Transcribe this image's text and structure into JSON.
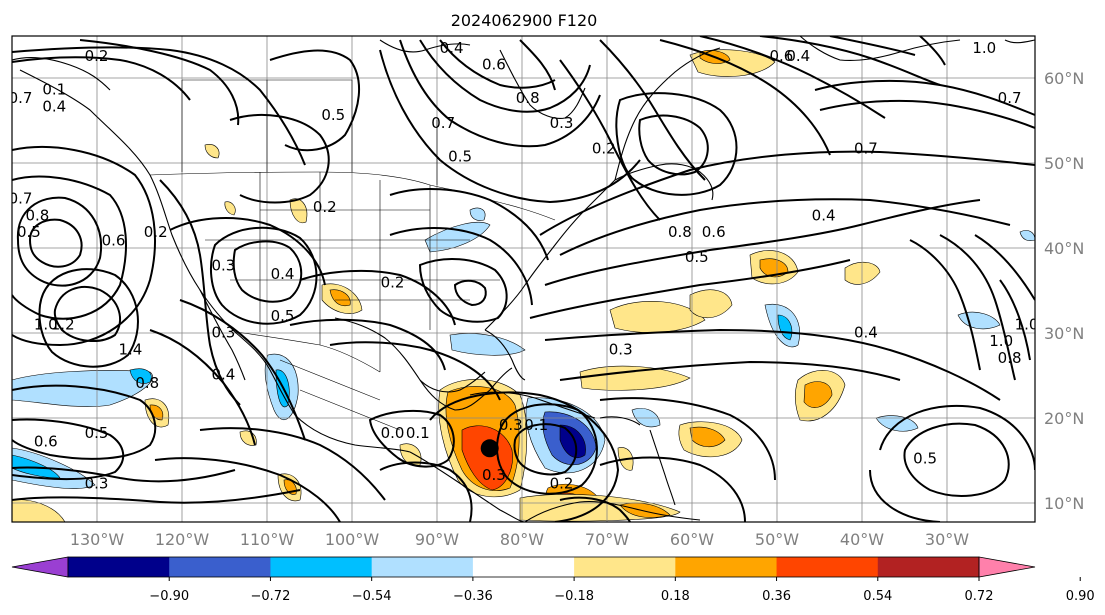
{
  "title": "2024062900 F120",
  "axes": {
    "lon_labels": [
      "130°W",
      "120°W",
      "110°W",
      "100°W",
      "90°W",
      "80°W",
      "70°W",
      "60°W",
      "50°W",
      "40°W",
      "30°W"
    ],
    "lat_labels": [
      "60°N",
      "50°N",
      "40°N",
      "30°N",
      "20°N",
      "10°N"
    ],
    "extent": {
      "lon_min": -137,
      "lon_max": -16,
      "lat_min": 7,
      "lat_max": 65
    }
  },
  "colorbar": {
    "ticks": [
      "−0.90",
      "−0.72",
      "−0.54",
      "−0.36",
      "−0.18",
      "0.18",
      "0.36",
      "0.54",
      "0.72",
      "0.90"
    ],
    "colors": [
      "#9a3fd2",
      "#00008b",
      "#3a5fcd",
      "#00bfff",
      "#b0e0ff",
      "#ffffff",
      "#ffe68a",
      "#ffa500",
      "#ff4500",
      "#b22222",
      "#ff80ab"
    ],
    "extend": "both"
  },
  "contour_labels": [
    {
      "text": "0.2",
      "lon": -127,
      "lat": 62
    },
    {
      "text": "0.4",
      "lon": -85,
      "lat": 63
    },
    {
      "text": "0.6",
      "lon": -80,
      "lat": 61
    },
    {
      "text": "0.8",
      "lon": -76,
      "lat": 57
    },
    {
      "text": "0.7",
      "lon": -86,
      "lat": 54
    },
    {
      "text": "0.5",
      "lon": -84,
      "lat": 50
    },
    {
      "text": "0.3",
      "lon": -72,
      "lat": 54
    },
    {
      "text": "0.2",
      "lon": -67,
      "lat": 51
    },
    {
      "text": "0.4",
      "lon": -44,
      "lat": 62
    },
    {
      "text": "0.6",
      "lon": -46,
      "lat": 62
    },
    {
      "text": "1.0",
      "lon": -22,
      "lat": 63
    },
    {
      "text": "0.7",
      "lon": -19,
      "lat": 57
    },
    {
      "text": "0.7",
      "lon": -36,
      "lat": 51
    },
    {
      "text": "0.8",
      "lon": -58,
      "lat": 41
    },
    {
      "text": "0.6",
      "lon": -54,
      "lat": 41
    },
    {
      "text": "0.5",
      "lon": -56,
      "lat": 38
    },
    {
      "text": "0.4",
      "lon": -41,
      "lat": 43
    },
    {
      "text": "0.4",
      "lon": -36,
      "lat": 29
    },
    {
      "text": "0.5",
      "lon": -29,
      "lat": 14
    },
    {
      "text": "1.0",
      "lon": -20,
      "lat": 28
    },
    {
      "text": "1.0",
      "lon": -17,
      "lat": 30
    },
    {
      "text": "0.8",
      "lon": -19,
      "lat": 26
    },
    {
      "text": "0.3",
      "lon": -65,
      "lat": 27
    },
    {
      "text": "0.2",
      "lon": -100,
      "lat": 44
    },
    {
      "text": "0.2",
      "lon": -120,
      "lat": 41
    },
    {
      "text": "0.4",
      "lon": -105,
      "lat": 36
    },
    {
      "text": "0.3",
      "lon": -112,
      "lat": 37
    },
    {
      "text": "0.5",
      "lon": -105,
      "lat": 31
    },
    {
      "text": "0.4",
      "lon": -112,
      "lat": 24
    },
    {
      "text": "0.3",
      "lon": -112,
      "lat": 29
    },
    {
      "text": "0.2",
      "lon": -92,
      "lat": 35
    },
    {
      "text": "0.5",
      "lon": -135,
      "lat": 41
    },
    {
      "text": "0.8",
      "lon": -134,
      "lat": 43
    },
    {
      "text": "0.7",
      "lon": -136,
      "lat": 45
    },
    {
      "text": "0.6",
      "lon": -125,
      "lat": 40
    },
    {
      "text": "1.0",
      "lon": -133,
      "lat": 30
    },
    {
      "text": "1.2",
      "lon": -131,
      "lat": 30
    },
    {
      "text": "1.4",
      "lon": -123,
      "lat": 27
    },
    {
      "text": "0.8",
      "lon": -121,
      "lat": 23
    },
    {
      "text": "0.5",
      "lon": -127,
      "lat": 17
    },
    {
      "text": "0.6",
      "lon": -133,
      "lat": 16
    },
    {
      "text": "0.3",
      "lon": -127,
      "lat": 11
    },
    {
      "text": "0.7",
      "lon": -136,
      "lat": 57
    },
    {
      "text": "0.4",
      "lon": -132,
      "lat": 56
    },
    {
      "text": "0.1",
      "lon": -132,
      "lat": 58
    },
    {
      "text": "0.0",
      "lon": -92,
      "lat": 17
    },
    {
      "text": "0.1",
      "lon": -89,
      "lat": 17
    },
    {
      "text": "0.3",
      "lon": -78,
      "lat": 18
    },
    {
      "text": "0.1",
      "lon": -75,
      "lat": 18
    },
    {
      "text": "0.2",
      "lon": -72,
      "lat": 11
    },
    {
      "text": "0.3",
      "lon": -80,
      "lat": 12
    },
    {
      "text": "0.5",
      "lon": -99,
      "lat": 55
    }
  ],
  "storm_marker": {
    "lon": -80.5,
    "lat": 15.8
  },
  "colors": {
    "contour": "#000000",
    "grid": "#888888",
    "coast": "#000000"
  }
}
